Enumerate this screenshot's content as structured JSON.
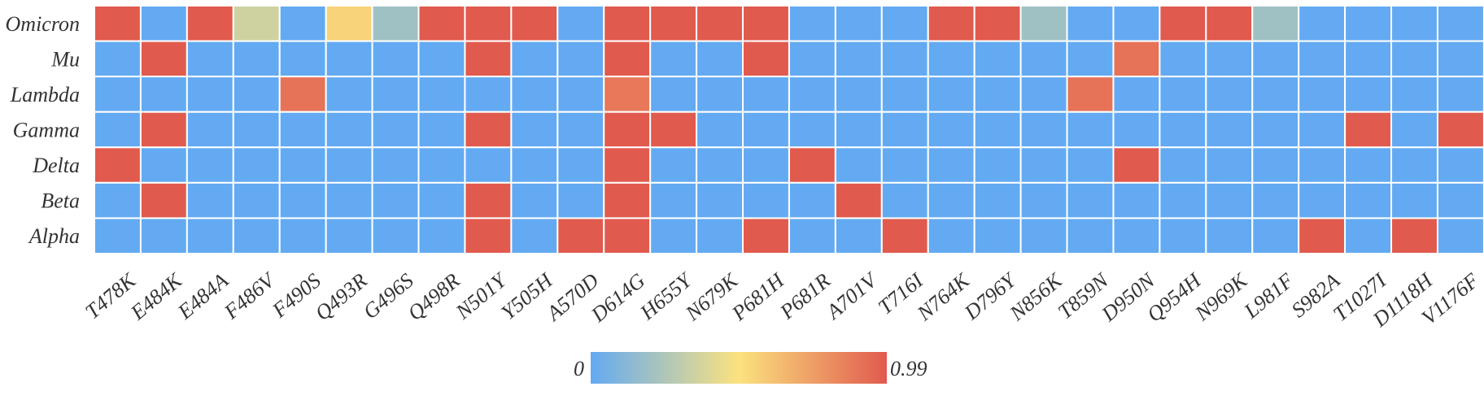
{
  "chart_data": {
    "type": "heatmap",
    "rows": [
      "Omicron",
      "Mu",
      "Lambda",
      "Gamma",
      "Delta",
      "Beta",
      "Alpha"
    ],
    "columns": [
      "T478K",
      "E484K",
      "E484A",
      "F486V",
      "F490S",
      "Q493R",
      "G496S",
      "Q498R",
      "N501Y",
      "Y505H",
      "A570D",
      "D614G",
      "H655Y",
      "N679K",
      "P681H",
      "P681R",
      "A701V",
      "T716I",
      "N764K",
      "D796Y",
      "N856K",
      "T859N",
      "D950N",
      "Q954H",
      "N969K",
      "L981F",
      "S982A",
      "T1027I",
      "D1118H",
      "V1176F"
    ],
    "values": [
      [
        0.99,
        0,
        0.99,
        0.35,
        0,
        0.55,
        0.2,
        0.99,
        0.99,
        0.99,
        0,
        0.99,
        0.99,
        0.99,
        0.99,
        0,
        0,
        0,
        0.99,
        0.99,
        0.2,
        0,
        0,
        0.99,
        0.99,
        0.2,
        0,
        0,
        0,
        0
      ],
      [
        0,
        0.99,
        0,
        0,
        0,
        0,
        0,
        0,
        0.99,
        0,
        0,
        0.99,
        0,
        0,
        0.99,
        0,
        0,
        0,
        0,
        0,
        0,
        0,
        0.9,
        0,
        0,
        0,
        0,
        0,
        0,
        0
      ],
      [
        0,
        0,
        0,
        0,
        0.9,
        0,
        0,
        0,
        0,
        0,
        0,
        0.88,
        0,
        0,
        0,
        0,
        0,
        0,
        0,
        0,
        0,
        0.9,
        0,
        0,
        0,
        0,
        0,
        0,
        0,
        0
      ],
      [
        0,
        0.99,
        0,
        0,
        0,
        0,
        0,
        0,
        0.99,
        0,
        0,
        0.99,
        0.99,
        0,
        0,
        0,
        0,
        0,
        0,
        0,
        0,
        0,
        0,
        0,
        0,
        0,
        0,
        0.99,
        0,
        0.99
      ],
      [
        0.99,
        0,
        0,
        0,
        0,
        0,
        0,
        0,
        0,
        0,
        0,
        0.99,
        0,
        0,
        0,
        0.99,
        0,
        0,
        0,
        0,
        0,
        0,
        0.99,
        0,
        0,
        0,
        0,
        0,
        0,
        0
      ],
      [
        0,
        0.99,
        0,
        0,
        0,
        0,
        0,
        0,
        0.99,
        0,
        0,
        0.99,
        0,
        0,
        0,
        0,
        0.99,
        0,
        0,
        0,
        0,
        0,
        0,
        0,
        0,
        0,
        0,
        0,
        0,
        0
      ],
      [
        0,
        0,
        0,
        0,
        0,
        0,
        0,
        0,
        0.99,
        0,
        0.99,
        0.99,
        0,
        0,
        0.99,
        0,
        0,
        0.99,
        0,
        0,
        0,
        0,
        0,
        0,
        0,
        0,
        0.99,
        0,
        0.99,
        0
      ]
    ],
    "vmin": 0,
    "vmax": 0.99,
    "colorbar": {
      "min_label": "0",
      "max_label": "0.99",
      "colors": [
        "#63aaf2",
        "#fbe27f",
        "#e15a4e"
      ]
    }
  }
}
